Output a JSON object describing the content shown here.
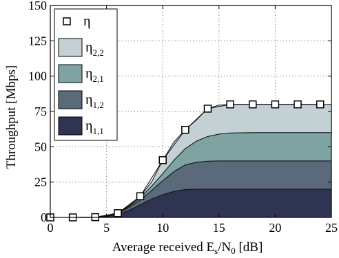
{
  "chart_data": {
    "type": "area",
    "xlabel": {
      "main": "Average received E",
      "sub1": "s",
      "mid": "/N",
      "sub2": "0",
      "tail": " [dB]"
    },
    "ylabel": "Throughput [Mbps]",
    "xlim": [
      0,
      25
    ],
    "ylim": [
      0,
      150
    ],
    "xticks": [
      0,
      5,
      10,
      15,
      20,
      25
    ],
    "yticks": [
      0,
      25,
      50,
      75,
      100,
      125,
      150
    ],
    "grid": true,
    "legend_position": "top-left",
    "x": [
      0,
      2,
      4,
      5,
      6,
      7,
      8,
      9,
      10,
      11,
      12,
      13,
      14,
      15,
      16,
      18,
      20,
      22,
      24,
      25
    ],
    "stacked_series": [
      {
        "name": "η",
        "sub": "1,1",
        "color": "#2f3452",
        "values": [
          0,
          0,
          0.2,
          0.8,
          2,
          5,
          9,
          13,
          16,
          18.5,
          19.7,
          20,
          20,
          20,
          20,
          20,
          20,
          20,
          20,
          20
        ]
      },
      {
        "name": "η",
        "sub": "1,2",
        "color": "#5a6a7a",
        "values": [
          0,
          0,
          0,
          0.4,
          1,
          2,
          3.5,
          6,
          10,
          14,
          17.5,
          19,
          19.8,
          20,
          20,
          20,
          20,
          20,
          20,
          20
        ]
      },
      {
        "name": "η",
        "sub": "2,1",
        "color": "#7fa3a3",
        "values": [
          0,
          0,
          0,
          0.2,
          0.3,
          0.8,
          1.5,
          3,
          5,
          8,
          11.5,
          15,
          17.5,
          19,
          19.8,
          20,
          20,
          20,
          20,
          20
        ]
      },
      {
        "name": "η",
        "sub": "2,2",
        "color": "#c3d1d4",
        "values": [
          0,
          0,
          0,
          0,
          0,
          0.5,
          1,
          3,
          9.5,
          13,
          13.3,
          15,
          19.7,
          20.5,
          20.2,
          20,
          20,
          20,
          20,
          20
        ]
      }
    ],
    "markers": {
      "name": "η",
      "x": [
        0,
        2,
        4,
        6,
        8,
        10,
        12,
        14,
        16,
        18,
        20,
        22,
        24
      ],
      "y": [
        0,
        0,
        0.2,
        3,
        15,
        40.5,
        62,
        77,
        80,
        80,
        80,
        80,
        80
      ]
    }
  }
}
